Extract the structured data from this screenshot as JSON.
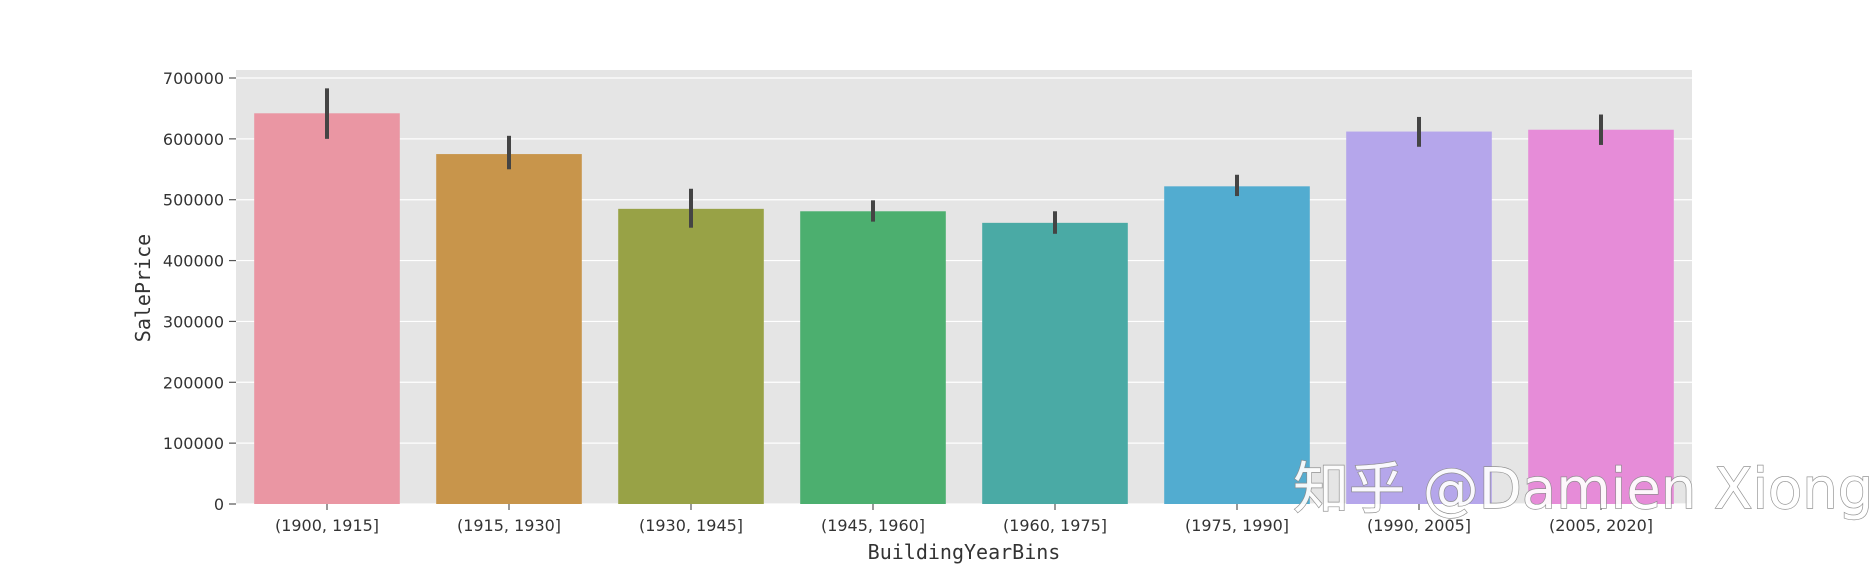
{
  "chart_data": {
    "type": "bar",
    "xlabel": "BuildingYearBins",
    "ylabel": "SalePrice",
    "categories": [
      "(1900, 1915]",
      "(1915, 1930]",
      "(1930, 1945]",
      "(1945, 1960]",
      "(1960, 1975]",
      "(1975, 1990]",
      "(1990, 2005]",
      "(2005, 2020]"
    ],
    "values": [
      642000,
      575000,
      485000,
      481000,
      462000,
      522000,
      612000,
      615000
    ],
    "error_bars": [
      [
        600000,
        683000
      ],
      [
        550000,
        605000
      ],
      [
        454000,
        518000
      ],
      [
        464000,
        499000
      ],
      [
        444000,
        481000
      ],
      [
        506000,
        541000
      ],
      [
        587000,
        636000
      ],
      [
        590000,
        640000
      ]
    ],
    "colors": [
      "#ea96a3",
      "#c8954b",
      "#98a246",
      "#4caf6f",
      "#4aaaa5",
      "#52acd0",
      "#b5a6eb",
      "#e68cd8"
    ],
    "ylim": [
      0,
      700000
    ],
    "yticks": [
      0,
      100000,
      200000,
      300000,
      400000,
      500000,
      600000,
      700000
    ],
    "grid": true,
    "background": "#e5e5e5"
  },
  "watermark": "知乎 @Damien Xiong"
}
